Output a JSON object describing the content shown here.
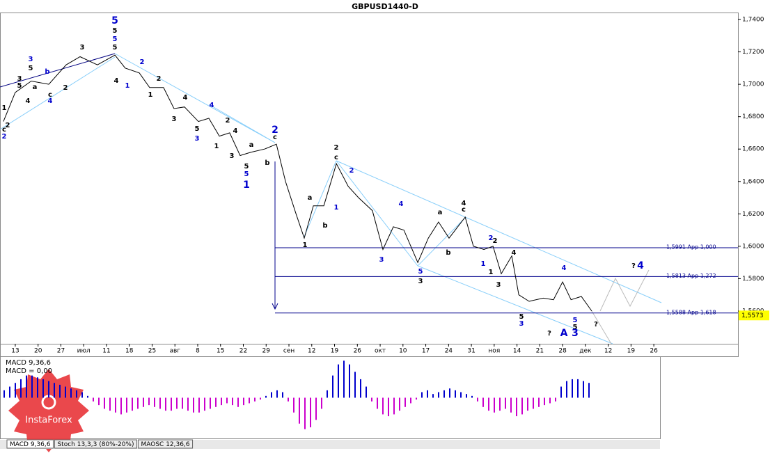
{
  "chart_data": {
    "type": "line",
    "title": "GBPUSD1440-D",
    "x": [
      -0.52,
      0,
      0.7,
      1.47,
      2.23,
      2.84,
      3.6,
      4.37,
      4.82,
      5.44,
      5.89,
      6.5,
      6.96,
      7.42,
      8.03,
      8.49,
      8.95,
      9.4,
      9.86,
      10.32,
      10.93,
      11.45,
      11.85,
      12.31,
      12.67,
      13.07,
      13.53,
      14.08,
      14.6,
      15.05,
      15.66,
      16.12,
      16.58,
      17.04,
      17.65,
      18.11,
      18.56,
      19.02,
      19.73,
      20.09,
      20.55,
      20.95,
      21.31,
      21.77,
      22.08,
      22.53,
      23.15,
      23.6,
      24,
      24.37,
      24.82,
      25.28
    ],
    "series": [
      {
        "name": "GBPUSD",
        "color": "#000000",
        "values": [
          1.677,
          1.695,
          1.702,
          1.7,
          1.712,
          1.717,
          1.712,
          1.718,
          1.71,
          1.707,
          1.698,
          1.698,
          1.685,
          1.686,
          1.677,
          1.679,
          1.668,
          1.67,
          1.656,
          1.658,
          1.66,
          1.663,
          1.64,
          1.62,
          1.605,
          1.625,
          1.625,
          1.651,
          1.637,
          1.63,
          1.622,
          1.598,
          1.612,
          1.61,
          1.59,
          1.605,
          1.615,
          1.605,
          1.618,
          1.6,
          1.598,
          1.6,
          1.583,
          1.594,
          1.57,
          1.566,
          1.568,
          1.567,
          1.578,
          1.567,
          1.569,
          1.56
        ]
      }
    ],
    "xlim": [
      -0.67,
      31.69
    ],
    "xticks": [
      {
        "value": 0,
        "label": "13"
      },
      {
        "value": 1,
        "label": "20"
      },
      {
        "value": 2,
        "label": "27"
      },
      {
        "value": 3,
        "label": "июл"
      },
      {
        "value": 4,
        "label": "11"
      },
      {
        "value": 5,
        "label": "18"
      },
      {
        "value": 6,
        "label": "25"
      },
      {
        "value": 7,
        "label": "авг"
      },
      {
        "value": 8,
        "label": "8"
      },
      {
        "value": 9,
        "label": "15"
      },
      {
        "value": 10,
        "label": "22"
      },
      {
        "value": 11,
        "label": "29"
      },
      {
        "value": 12,
        "label": "сен"
      },
      {
        "value": 13,
        "label": "12"
      },
      {
        "value": 14,
        "label": "19"
      },
      {
        "value": 15,
        "label": "26"
      },
      {
        "value": 16,
        "label": "окт"
      },
      {
        "value": 17,
        "label": "10"
      },
      {
        "value": 18,
        "label": "17"
      },
      {
        "value": 19,
        "label": "24"
      },
      {
        "value": 20,
        "label": "31"
      },
      {
        "value": 21,
        "label": "ноя"
      },
      {
        "value": 22,
        "label": "14"
      },
      {
        "value": 23,
        "label": "21"
      },
      {
        "value": 24,
        "label": "28"
      },
      {
        "value": 25,
        "label": "дек"
      },
      {
        "value": 26,
        "label": "12"
      },
      {
        "value": 27,
        "label": "19"
      },
      {
        "value": 28,
        "label": "26"
      }
    ],
    "ylim": [
      1.5398,
      1.7443
    ],
    "yticks": [
      {
        "value": 1.74,
        "label": "1,7400"
      },
      {
        "value": 1.72,
        "label": "1,7200"
      },
      {
        "value": 1.7,
        "label": "1,7000"
      },
      {
        "value": 1.68,
        "label": "1,6800"
      },
      {
        "value": 1.66,
        "label": "1,6600"
      },
      {
        "value": 1.64,
        "label": "1,6400"
      },
      {
        "value": 1.62,
        "label": "1,6200"
      },
      {
        "value": 1.6,
        "label": "1,6000"
      },
      {
        "value": 1.58,
        "label": "1,5800"
      },
      {
        "value": 1.56,
        "label": "1,5600"
      }
    ],
    "levels": [
      {
        "value": 1.5991,
        "label": "1,5991 App 1,000",
        "color": "#00008b"
      },
      {
        "value": 1.5813,
        "label": "1,5813 App 1,272",
        "color": "#00008b"
      },
      {
        "value": 1.5588,
        "label": "1,5588 App 1,618",
        "color": "#00008b"
      }
    ],
    "last_price": {
      "value": 1.5573,
      "label": "1,5573",
      "color": "#ffff00"
    },
    "wave_labels": [
      "5",
      "5",
      "5",
      "5",
      "3",
      "5",
      "3",
      "2",
      "1",
      "4",
      "2",
      "1",
      "4",
      "4",
      "3",
      "5",
      "3",
      "1",
      "4",
      "2",
      "3",
      "a",
      "b",
      "c",
      "2",
      "5",
      "5",
      "1",
      "1",
      "a",
      "b",
      "2",
      "c",
      "2",
      "1",
      "4",
      "3",
      "5",
      "3",
      "a",
      "b",
      "4",
      "c",
      "2",
      "2",
      "1",
      "1",
      "4",
      "3",
      "4",
      "5",
      "3",
      "5",
      "5",
      "3",
      "A",
      "?",
      "?",
      "?",
      "4",
      "c",
      "2",
      "2",
      "1",
      "c",
      "4",
      "2",
      "4",
      "a",
      "b",
      "5",
      "3"
    ],
    "macd": {
      "title": "MACD 9,36,6",
      "value_text": "MACD = 0,00",
      "up_color": "#0000cd",
      "down_color": "#cc00cc",
      "ylim": [
        -1.1,
        1.1
      ],
      "values": [
        0.2,
        0.3,
        0.4,
        0.5,
        0.6,
        0.6,
        0.55,
        0.5,
        0.45,
        0.4,
        0.35,
        0.3,
        0.25,
        0.2,
        0.15,
        0.05,
        -0.1,
        -0.2,
        -0.3,
        -0.35,
        -0.4,
        -0.45,
        -0.4,
        -0.35,
        -0.3,
        -0.25,
        -0.2,
        -0.25,
        -0.3,
        -0.35,
        -0.35,
        -0.3,
        -0.3,
        -0.35,
        -0.4,
        -0.4,
        -0.35,
        -0.3,
        -0.25,
        -0.2,
        -0.15,
        -0.2,
        -0.25,
        -0.2,
        -0.15,
        -0.1,
        -0.05,
        0.05,
        0.15,
        0.2,
        0.15,
        -0.1,
        -0.4,
        -0.7,
        -0.85,
        -0.8,
        -0.6,
        -0.3,
        0.2,
        0.6,
        0.9,
        1.0,
        0.9,
        0.7,
        0.5,
        0.3,
        -0.1,
        -0.3,
        -0.45,
        -0.5,
        -0.45,
        -0.35,
        -0.25,
        -0.15,
        -0.05,
        0.15,
        0.2,
        0.1,
        0.15,
        0.2,
        0.25,
        0.2,
        0.15,
        0.1,
        0.05,
        -0.1,
        -0.25,
        -0.35,
        -0.4,
        -0.35,
        -0.3,
        -0.4,
        -0.5,
        -0.45,
        -0.35,
        -0.3,
        -0.25,
        -0.2,
        -0.15,
        -0.1,
        0.3,
        0.45,
        0.5,
        0.5,
        0.45,
        0.4
      ]
    },
    "tabs": [
      "MACD 9,36,6",
      "Stoch 13,3,3 (80%-20%)",
      "MAOSC 12,36,6"
    ],
    "logo": "InstaForex"
  }
}
